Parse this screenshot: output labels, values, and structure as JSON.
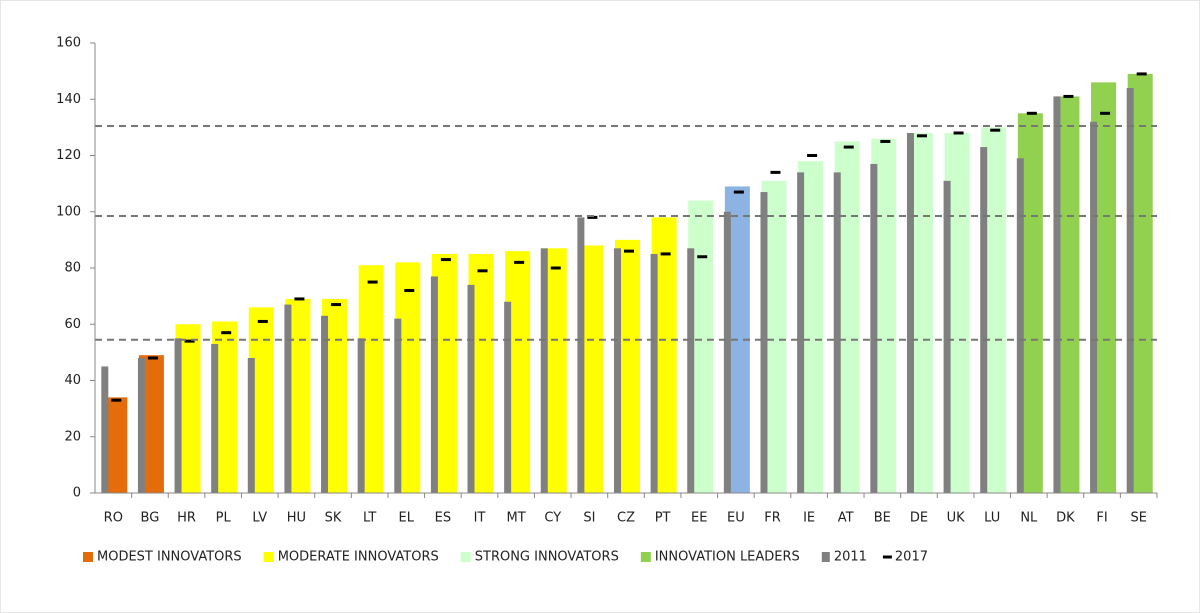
{
  "chart_data": {
    "type": "bar",
    "categories": [
      "RO",
      "BG",
      "HR",
      "PL",
      "LV",
      "HU",
      "SK",
      "LT",
      "EL",
      "ES",
      "IT",
      "MT",
      "CY",
      "SI",
      "CZ",
      "PT",
      "EE",
      "EU",
      "FR",
      "IE",
      "AT",
      "BE",
      "DE",
      "UK",
      "LU",
      "NL",
      "DK",
      "FI",
      "SE"
    ],
    "values": [
      34,
      49,
      60,
      61,
      66,
      69,
      69,
      81,
      82,
      85,
      85,
      86,
      87,
      88,
      90,
      98,
      104,
      109,
      111,
      118,
      125,
      126,
      128,
      128,
      130,
      135,
      141,
      146,
      149
    ],
    "colors": [
      "#e46c0a",
      "#e46c0a",
      "#ffff00",
      "#ffff00",
      "#ffff00",
      "#ffff00",
      "#ffff00",
      "#ffff00",
      "#ffff00",
      "#ffff00",
      "#ffff00",
      "#ffff00",
      "#ffff00",
      "#ffff00",
      "#ffff00",
      "#ffff00",
      "#ccffcc",
      "#8db3e2",
      "#ccffcc",
      "#ccffcc",
      "#ccffcc",
      "#ccffcc",
      "#ccffcc",
      "#ccffcc",
      "#ccffcc",
      "#92d050",
      "#92d050",
      "#92d050",
      "#92d050"
    ],
    "legend": [
      {
        "name": "MODEST INNOVATORS",
        "color": "#e46c0a"
      },
      {
        "name": "MODERATE INNOVATORS",
        "color": "#ffff00"
      },
      {
        "name": "STRONG INNOVATORS",
        "color": "#ccffcc"
      },
      {
        "name": "INNOVATION LEADERS",
        "color": "#92d050"
      }
    ],
    "series": [
      {
        "name": "2011",
        "color": "#808080",
        "marker": "bar",
        "values": [
          45,
          48,
          55,
          53,
          48,
          67,
          63,
          55,
          62,
          77,
          74,
          68,
          87,
          98,
          87,
          85,
          87,
          100,
          107,
          114,
          114,
          117,
          128,
          111,
          123,
          119,
          141,
          132,
          144
        ]
      },
      {
        "name": "2017",
        "color": "#000000",
        "marker": "dash",
        "values": [
          33,
          48,
          54,
          57,
          61,
          69,
          67,
          75,
          72,
          83,
          79,
          82,
          80,
          98,
          86,
          85,
          84,
          107,
          114,
          120,
          123,
          125,
          127,
          128,
          129,
          135,
          141,
          135,
          149
        ]
      }
    ],
    "reference_lines": [
      130.5,
      98.5,
      54.5
    ],
    "ylim": [
      0,
      160
    ],
    "yticks": [
      0,
      20,
      40,
      60,
      80,
      100,
      120,
      140,
      160
    ]
  }
}
